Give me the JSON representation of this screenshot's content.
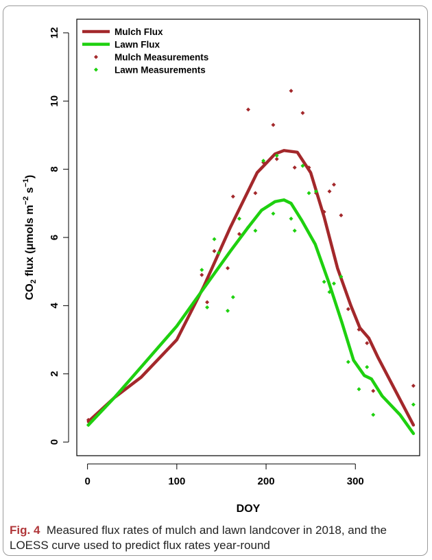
{
  "caption": {
    "label": "Fig. 4",
    "text": "Measured flux rates of mulch and lawn landcover in 2018, and the LOESS curve used to predict flux rates year-round"
  },
  "chart_data": {
    "type": "line",
    "title": "",
    "xlabel": "DOY",
    "ylabel": {
      "prefix": "CO",
      "subscript": "2",
      "middle": " flux (",
      "mu": "μ",
      "unit_a": "mols m",
      "exp_a": "−2",
      "unit_b": " s",
      "exp_b": "−1",
      "suffix": ")"
    },
    "xlim": [
      -12,
      372
    ],
    "ylim": [
      -0.4,
      12.4
    ],
    "xticks": [
      0,
      100,
      200,
      300
    ],
    "yticks": [
      0,
      2,
      4,
      6,
      8,
      10,
      12
    ],
    "legend": {
      "position": "top-left",
      "entries": [
        {
          "label": "Mulch Flux",
          "type": "line",
          "color": "#a3282b"
        },
        {
          "label": "Lawn Flux",
          "type": "line",
          "color": "#1ed00f"
        },
        {
          "label": "Mulch Measurements",
          "type": "point",
          "color": "#a3282b"
        },
        {
          "label": "Lawn Measurements",
          "type": "point",
          "color": "#1ed00f"
        }
      ]
    },
    "series": [
      {
        "name": "Mulch Flux",
        "kind": "line",
        "color": "#a3282b",
        "points": [
          [
            1,
            0.6
          ],
          [
            30,
            1.3
          ],
          [
            60,
            1.9
          ],
          [
            100,
            3.0
          ],
          [
            130,
            4.55
          ],
          [
            160,
            6.3
          ],
          [
            190,
            7.9
          ],
          [
            210,
            8.45
          ],
          [
            220,
            8.55
          ],
          [
            235,
            8.5
          ],
          [
            250,
            7.9
          ],
          [
            265,
            6.6
          ],
          [
            280,
            5.1
          ],
          [
            295,
            4.0
          ],
          [
            305,
            3.35
          ],
          [
            315,
            3.05
          ],
          [
            325,
            2.5
          ],
          [
            345,
            1.5
          ],
          [
            365,
            0.5
          ]
        ]
      },
      {
        "name": "Lawn Flux",
        "kind": "line",
        "color": "#1ed00f",
        "points": [
          [
            1,
            0.5
          ],
          [
            30,
            1.3
          ],
          [
            60,
            2.2
          ],
          [
            100,
            3.4
          ],
          [
            130,
            4.5
          ],
          [
            160,
            5.6
          ],
          [
            180,
            6.3
          ],
          [
            195,
            6.8
          ],
          [
            210,
            7.05
          ],
          [
            220,
            7.1
          ],
          [
            228,
            7.0
          ],
          [
            240,
            6.5
          ],
          [
            255,
            5.8
          ],
          [
            270,
            4.7
          ],
          [
            285,
            3.5
          ],
          [
            298,
            2.4
          ],
          [
            310,
            1.95
          ],
          [
            318,
            1.85
          ],
          [
            330,
            1.35
          ],
          [
            350,
            0.8
          ],
          [
            365,
            0.25
          ]
        ]
      },
      {
        "name": "Mulch Measurements",
        "kind": "scatter",
        "color": "#a3282b",
        "points": [
          [
            1,
            0.65
          ],
          [
            128,
            4.9
          ],
          [
            134,
            4.1
          ],
          [
            142,
            5.6
          ],
          [
            157,
            5.1
          ],
          [
            163,
            7.2
          ],
          [
            170,
            6.1
          ],
          [
            180,
            9.75
          ],
          [
            188,
            7.3
          ],
          [
            197,
            8.2
          ],
          [
            208,
            9.3
          ],
          [
            212,
            8.3
          ],
          [
            228,
            10.3
          ],
          [
            232,
            8.05
          ],
          [
            241,
            9.65
          ],
          [
            248,
            8.05
          ],
          [
            256,
            7.3
          ],
          [
            265,
            6.75
          ],
          [
            271,
            7.35
          ],
          [
            276,
            7.55
          ],
          [
            284,
            6.65
          ],
          [
            292,
            3.9
          ],
          [
            304,
            3.3
          ],
          [
            313,
            2.9
          ],
          [
            320,
            1.5
          ],
          [
            365,
            1.65
          ]
        ]
      },
      {
        "name": "Lawn Measurements",
        "kind": "scatter",
        "color": "#1ed00f",
        "points": [
          [
            1,
            0.5
          ],
          [
            128,
            5.05
          ],
          [
            134,
            3.95
          ],
          [
            142,
            5.95
          ],
          [
            147,
            5.55
          ],
          [
            157,
            3.85
          ],
          [
            163,
            4.25
          ],
          [
            170,
            6.55
          ],
          [
            180,
            6.3
          ],
          [
            188,
            6.2
          ],
          [
            197,
            8.25
          ],
          [
            208,
            6.7
          ],
          [
            212,
            8.4
          ],
          [
            228,
            6.55
          ],
          [
            232,
            6.2
          ],
          [
            241,
            8.1
          ],
          [
            248,
            7.3
          ],
          [
            256,
            7.35
          ],
          [
            265,
            4.7
          ],
          [
            271,
            4.4
          ],
          [
            276,
            4.65
          ],
          [
            284,
            4.85
          ],
          [
            292,
            2.35
          ],
          [
            304,
            1.55
          ],
          [
            313,
            2.2
          ],
          [
            320,
            0.8
          ],
          [
            365,
            1.1
          ]
        ]
      }
    ]
  }
}
